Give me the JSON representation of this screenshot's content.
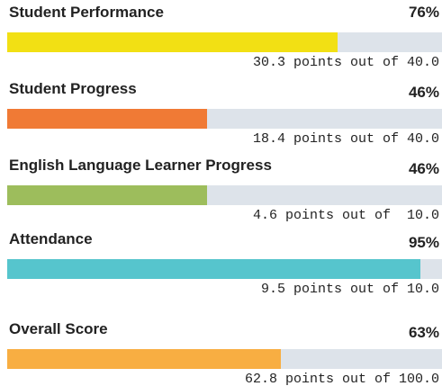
{
  "chart_data": {
    "type": "progress",
    "categories": [
      "Student Performance",
      "Student Progress",
      "English Language Learner Progress",
      "Attendance",
      "Overall Score"
    ],
    "values": [
      76,
      46,
      46,
      95,
      63
    ],
    "value_labels": [
      "76%",
      "46%",
      "46%",
      "95%",
      "63%"
    ],
    "annotations": [
      "30.3 points out of 40.0",
      "18.4 points out of 40.0",
      "4.6 points out of  10.0",
      "9.5 points out of 10.0",
      "62.8 points out of 100.0"
    ],
    "colors": [
      "#f2e014",
      "#f07a35",
      "#9dbd5c",
      "#56c5cd",
      "#f8ae42"
    ],
    "xlim": [
      0,
      100
    ]
  }
}
